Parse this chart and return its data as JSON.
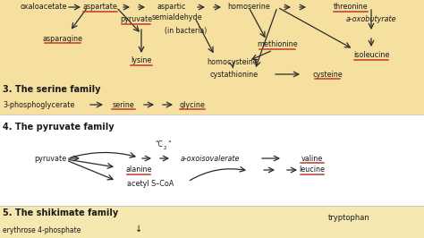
{
  "section3_bg": "#f5e0a0",
  "section4_bg": "#ffffff",
  "section5_bg": "#f5e8b0",
  "underline_color": "#c0392b",
  "text_color": "#1a1a1a",
  "arrow_color": "#2a2a2a",
  "title3": "3. The serine family",
  "title4": "4. The pyruvate family",
  "title5": "5. The shikimate family",
  "border_color": "#bbbbbb"
}
